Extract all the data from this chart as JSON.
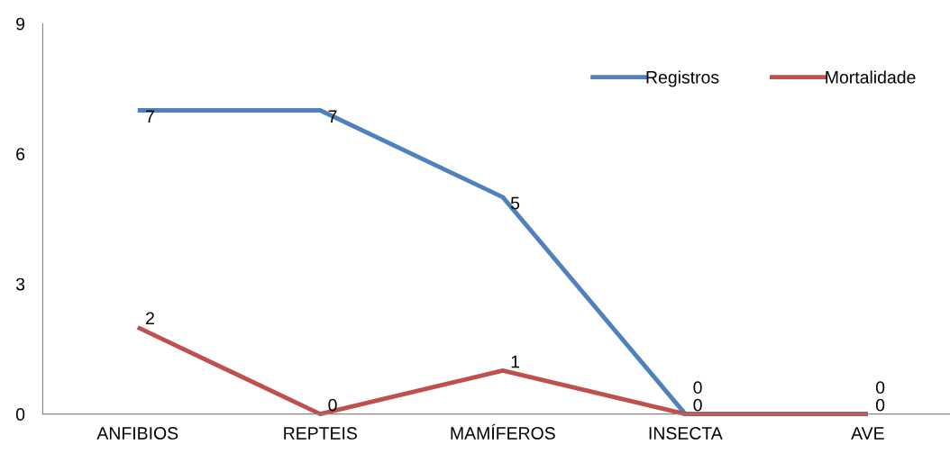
{
  "chart_data": {
    "type": "line",
    "categories": [
      "ANFIBIOS",
      "REPTEIS",
      "MAMÍFEROS",
      "INSECTA",
      "AVE"
    ],
    "series": [
      {
        "name": "Registros",
        "color": "#4f81bd",
        "values": [
          7,
          7,
          5,
          0,
          0
        ]
      },
      {
        "name": "Mortalidade",
        "color": "#c0504d",
        "values": [
          2,
          0,
          1,
          0,
          0
        ]
      }
    ],
    "ylim": [
      0,
      9
    ],
    "yticks": [
      0,
      3,
      6,
      9
    ],
    "data_labels": true,
    "legend": "top right",
    "grid": false,
    "marker": "none",
    "line_style": "solid"
  }
}
